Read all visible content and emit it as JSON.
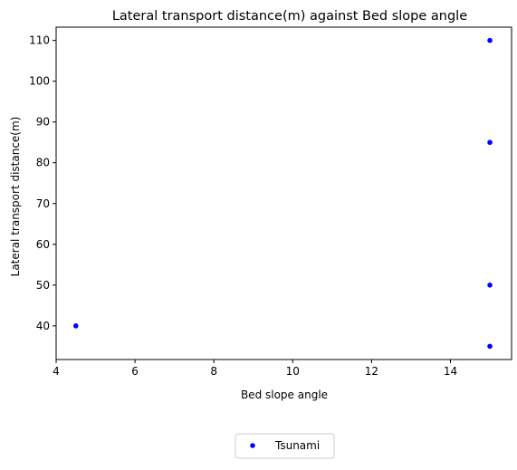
{
  "chart_data": {
    "type": "scatter",
    "title": "Lateral transport distance(m) against Bed slope angle",
    "xlabel": "Bed slope angle",
    "ylabel": "Lateral transport distance(m)",
    "xlim": [
      4.0,
      15.55
    ],
    "ylim": [
      31.75,
      113.25
    ],
    "xticks": [
      4,
      6,
      8,
      10,
      12,
      14
    ],
    "yticks": [
      40,
      50,
      60,
      70,
      80,
      90,
      100,
      110
    ],
    "grid": false,
    "legend_position": "bottom-center",
    "series": [
      {
        "name": "Tsunami",
        "color": "#0000ff",
        "marker": "circle",
        "points": [
          {
            "x": 4.5,
            "y": 40
          },
          {
            "x": 15,
            "y": 110
          },
          {
            "x": 15,
            "y": 85
          },
          {
            "x": 15,
            "y": 50
          },
          {
            "x": 15,
            "y": 35
          }
        ]
      }
    ]
  }
}
